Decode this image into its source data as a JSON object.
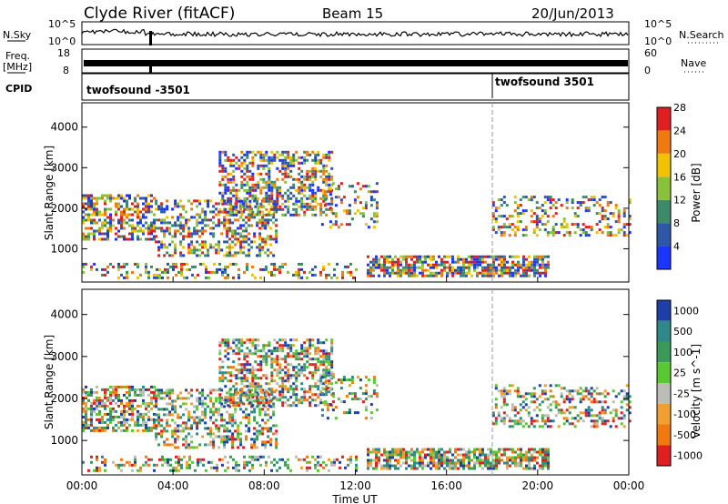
{
  "header": {
    "title": "Clyde River (fitACF)",
    "beam": "Beam 15",
    "date": "20/Jun/2013"
  },
  "panels": {
    "nsky": {
      "left_label": "N.Sky",
      "left_ticks": [
        "10^5",
        "10^0"
      ],
      "right_ticks": [
        "10^5",
        "10^0"
      ],
      "right_label": "N.Search"
    },
    "freq": {
      "left_label_1": "Freq.",
      "left_label_2": "[MHz]",
      "left_ticks": [
        "18",
        "8"
      ],
      "right_ticks": [
        "60",
        "0"
      ],
      "right_label": "Nave"
    },
    "cpid": {
      "label": "CPID",
      "segments": [
        {
          "label": "twofsound -3501",
          "start_hour": 0
        },
        {
          "label": "twofsound 3501",
          "start_hour": 18
        }
      ]
    }
  },
  "chart_data": [
    {
      "type": "heatmap",
      "name": "power",
      "ylabel": "Slant Range [km]",
      "xlabel": "Time UT",
      "xlim": [
        0,
        24
      ],
      "ylim": [
        180,
        4600
      ],
      "x_ticks": [
        "00:00",
        "04:00",
        "08:00",
        "12:00",
        "16:00",
        "20:00",
        "00:00"
      ],
      "y_ticks": [
        1000,
        2000,
        3000,
        4000
      ],
      "colorbar": {
        "label": "Power [dB]",
        "ticks": [
          "4",
          "8",
          "12",
          "16",
          "20",
          "24",
          "28"
        ],
        "colors": [
          "#1a35ff",
          "#2f57a8",
          "#3b8a6a",
          "#8ac13a",
          "#f2c200",
          "#f07a10",
          "#e02020"
        ]
      }
    },
    {
      "type": "heatmap",
      "name": "velocity",
      "ylabel": "Slant Range [km]",
      "xlabel": "Time UT",
      "xlim": [
        0,
        24
      ],
      "ylim": [
        180,
        4600
      ],
      "x_ticks": [
        "00:00",
        "04:00",
        "08:00",
        "12:00",
        "16:00",
        "20:00",
        "00:00"
      ],
      "y_ticks": [
        1000,
        2000,
        3000,
        4000
      ],
      "colorbar": {
        "label": "Velocity [m s^-1]",
        "ticks": [
          "1000",
          "500",
          "100",
          "25",
          "-25",
          "-100",
          "-500",
          "-1000"
        ],
        "colors": [
          "#1e3fa8",
          "#2e8a8a",
          "#3a9a5a",
          "#5ac832",
          "#bdbdb8",
          "#f0a030",
          "#f07a10",
          "#e02020"
        ]
      }
    }
  ]
}
